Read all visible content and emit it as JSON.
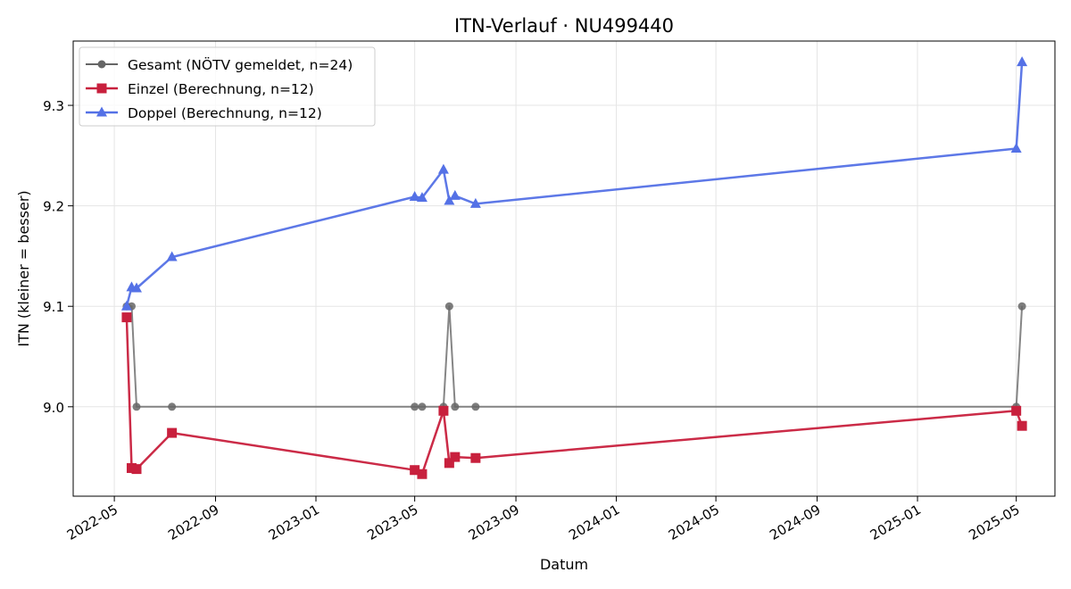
{
  "chart_data": {
    "type": "line",
    "title": "ITN-Verlauf · NU499440",
    "xlabel": "Datum",
    "ylabel": "ITN  (kleiner = besser)",
    "x_ticks": [
      "2022-05",
      "2022-09",
      "2023-01",
      "2023-05",
      "2023-09",
      "2024-01",
      "2024-05",
      "2024-09",
      "2025-01",
      "2025-05"
    ],
    "y_ticks": [
      "9.0",
      "9.1",
      "9.2",
      "9.3"
    ],
    "xlim": [
      "2022-03-12",
      "2025-06-17"
    ],
    "ylim": [
      8.911,
      9.364
    ],
    "grid": true,
    "legend_position": "top-left",
    "series": [
      {
        "name": "Gesamt (NÖTV gemeldet, n=24)",
        "color": "#666666",
        "marker": "circle",
        "points": [
          [
            "2022-05-16",
            9.1
          ],
          [
            "2022-05-22",
            9.1
          ],
          [
            "2022-05-28",
            9.0
          ],
          [
            "2022-07-10",
            9.0
          ],
          [
            "2023-05-01",
            9.0
          ],
          [
            "2023-05-10",
            9.0
          ],
          [
            "2023-06-05",
            9.0
          ],
          [
            "2023-06-12",
            9.1
          ],
          [
            "2023-06-19",
            9.0
          ],
          [
            "2023-07-14",
            9.0
          ],
          [
            "2025-05-01",
            9.0
          ],
          [
            "2025-05-08",
            9.1
          ]
        ]
      },
      {
        "name": "Einzel (Berechnung, n=12)",
        "color": "#c8203d",
        "marker": "square",
        "points": [
          [
            "2022-05-16",
            9.089
          ],
          [
            "2022-05-22",
            8.939
          ],
          [
            "2022-05-28",
            8.938
          ],
          [
            "2022-07-10",
            8.974
          ],
          [
            "2023-05-01",
            8.937
          ],
          [
            "2023-05-10",
            8.933
          ],
          [
            "2023-06-05",
            8.996
          ],
          [
            "2023-06-12",
            8.944
          ],
          [
            "2023-06-19",
            8.95
          ],
          [
            "2023-07-14",
            8.949
          ],
          [
            "2025-05-01",
            8.996
          ],
          [
            "2025-05-08",
            8.981
          ]
        ]
      },
      {
        "name": "Doppel (Berechnung, n=12)",
        "color": "#5471e6",
        "marker": "triangle",
        "points": [
          [
            "2022-05-16",
            9.1
          ],
          [
            "2022-05-22",
            9.119
          ],
          [
            "2022-05-28",
            9.118
          ],
          [
            "2022-07-10",
            9.149
          ],
          [
            "2023-05-01",
            9.209
          ],
          [
            "2023-05-10",
            9.208
          ],
          [
            "2023-06-05",
            9.236
          ],
          [
            "2023-06-12",
            9.205
          ],
          [
            "2023-06-19",
            9.21
          ],
          [
            "2023-07-14",
            9.202
          ],
          [
            "2025-05-01",
            9.257
          ],
          [
            "2025-05-08",
            9.343
          ]
        ]
      }
    ]
  }
}
